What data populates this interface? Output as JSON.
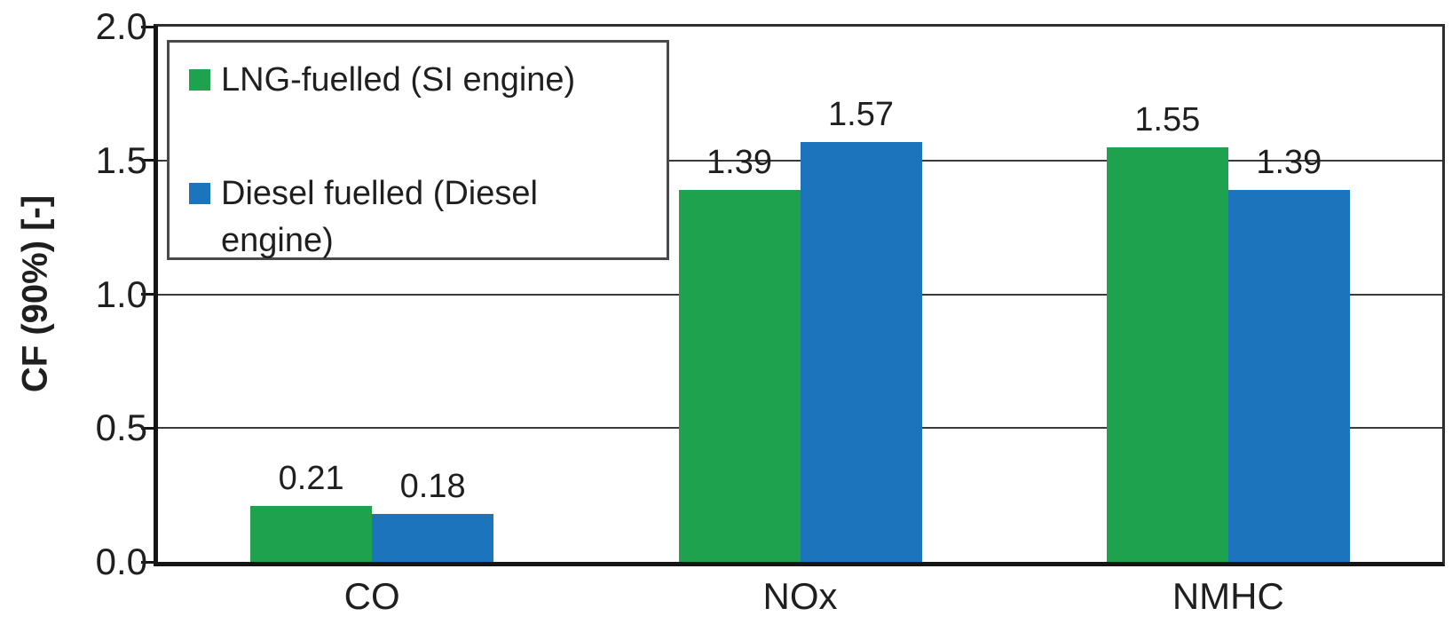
{
  "chart_data": {
    "type": "bar",
    "title": "",
    "categories": [
      "CO",
      "NOx",
      "NMHC"
    ],
    "series": [
      {
        "name": "LNG-fuelled (SI engine)",
        "color": "#1FA24E",
        "values": [
          0.21,
          1.39,
          1.55
        ]
      },
      {
        "name": "Diesel fuelled (Diesel engine)",
        "color": "#1B74BC",
        "values": [
          0.18,
          1.57,
          1.39
        ]
      }
    ],
    "value_labels": [
      [
        "0.21",
        "0.18"
      ],
      [
        "1.39",
        "1.57"
      ],
      [
        "1.55",
        "1.39"
      ]
    ],
    "xlabel": "",
    "ylabel": "CF (90%) [-]",
    "ylim": [
      0.0,
      2.0
    ],
    "yticks": [
      "0.0",
      "0.5",
      "1.0",
      "1.5",
      "2.0"
    ],
    "grid": "horizontal-at-0.5-1.0-1.5",
    "legend_position": "top-left-inside",
    "bar_gap_within_group": 0
  },
  "colors": {
    "series_green": "#1FA24E",
    "series_blue": "#1B74BC",
    "axis": "#151515",
    "gridline": "#3b3b3b",
    "text": "#1f1f1f"
  }
}
